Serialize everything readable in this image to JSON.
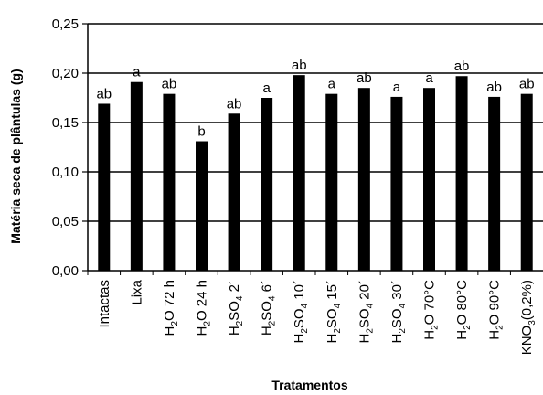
{
  "chart_data": {
    "type": "bar",
    "xlabel": "Tratamentos",
    "ylabel": "Matéria seca de plântulas (g)",
    "ylim": [
      0,
      0.25
    ],
    "yticks": [
      "0,00",
      "0,05",
      "0,10",
      "0,15",
      "0,20",
      "0,25"
    ],
    "grid": "horizontal",
    "bar_color": "#000000",
    "categories": [
      {
        "base": "Intactas",
        "sub": "",
        "rest": ""
      },
      {
        "base": "Lixa",
        "sub": "",
        "rest": ""
      },
      {
        "base": "H",
        "sub": "2",
        "rest": "O 72 h"
      },
      {
        "base": "H",
        "sub": "2",
        "rest": "O 24 h"
      },
      {
        "base": "H",
        "sub": "2",
        "rest": "SO",
        "sub2": "4",
        "rest2": "  2´"
      },
      {
        "base": "H",
        "sub": "2",
        "rest": "SO",
        "sub2": "4",
        "rest2": "  6´"
      },
      {
        "base": "H",
        "sub": "2",
        "rest": "SO",
        "sub2": "4",
        "rest2": " 10´"
      },
      {
        "base": "H",
        "sub": "2",
        "rest": "SO",
        "sub2": "4",
        "rest2": " 15´"
      },
      {
        "base": "H",
        "sub": "2",
        "rest": "SO",
        "sub2": "4",
        "rest2": " 20´"
      },
      {
        "base": "H",
        "sub": "2",
        "rest": "SO",
        "sub2": "4",
        "rest2": " 30´"
      },
      {
        "base": "H",
        "sub": "2",
        "rest": "O 70°C"
      },
      {
        "base": "H",
        "sub": "2",
        "rest": "O 80°C"
      },
      {
        "base": "H",
        "sub": "2",
        "rest": "O 90°C"
      },
      {
        "base": "KNO",
        "sub": "3",
        "rest": "(0,2%)"
      }
    ],
    "values": [
      0.169,
      0.191,
      0.179,
      0.131,
      0.159,
      0.175,
      0.198,
      0.179,
      0.185,
      0.176,
      0.185,
      0.197,
      0.176,
      0.179
    ],
    "letters": [
      "ab",
      "a",
      "ab",
      "b",
      "ab",
      "a",
      "ab",
      "a",
      "ab",
      "a",
      "a",
      "ab",
      "ab",
      "ab"
    ]
  }
}
